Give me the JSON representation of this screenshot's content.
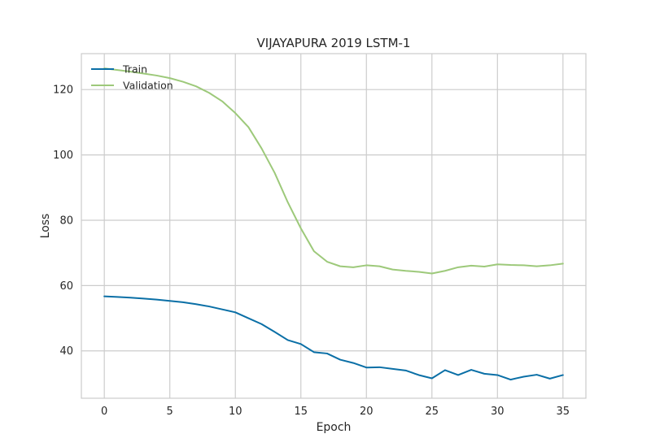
{
  "chart_data": {
    "type": "line",
    "title": "VIJAYAPURA 2019 LSTM-1",
    "xlabel": "Epoch",
    "ylabel": "Loss",
    "xlim": [
      -1.75,
      36.75
    ],
    "ylim": [
      25.5,
      131
    ],
    "xticks": [
      0,
      5,
      10,
      15,
      20,
      25,
      30,
      35
    ],
    "yticks": [
      40,
      60,
      80,
      100,
      120
    ],
    "grid": true,
    "legend": "top-left",
    "x": [
      0,
      1,
      2,
      3,
      4,
      5,
      6,
      7,
      8,
      9,
      10,
      11,
      12,
      13,
      14,
      15,
      16,
      17,
      18,
      19,
      20,
      21,
      22,
      23,
      24,
      25,
      26,
      27,
      28,
      29,
      30,
      31,
      32,
      33,
      34,
      35
    ],
    "series": [
      {
        "name": "Train",
        "color": "#0a6fa6",
        "values": [
          56.7,
          56.5,
          56.3,
          56.0,
          55.7,
          55.3,
          54.9,
          54.3,
          53.6,
          52.7,
          51.8,
          50.0,
          48.2,
          45.8,
          43.3,
          42.1,
          39.6,
          39.2,
          37.3,
          36.3,
          34.9,
          35.0,
          34.5,
          34.0,
          32.6,
          31.6,
          34.1,
          32.6,
          34.2,
          33.0,
          32.6,
          31.2,
          32.1,
          32.7,
          31.5,
          32.6
        ]
      },
      {
        "name": "Validation",
        "color": "#9dc97a",
        "values": [
          126.5,
          126.0,
          125.5,
          124.9,
          124.3,
          123.5,
          122.4,
          121.0,
          119.0,
          116.4,
          112.8,
          108.5,
          102.0,
          94.5,
          85.5,
          77.5,
          70.5,
          67.3,
          65.9,
          65.6,
          66.2,
          65.9,
          64.9,
          64.5,
          64.2,
          63.7,
          64.5,
          65.6,
          66.1,
          65.8,
          66.5,
          66.3,
          66.2,
          65.9,
          66.2,
          66.7
        ]
      }
    ]
  }
}
